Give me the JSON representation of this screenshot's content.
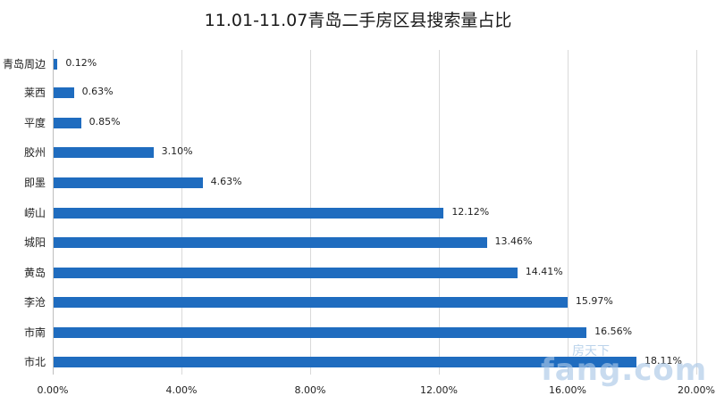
{
  "chart_data": {
    "type": "bar",
    "orientation": "horizontal",
    "title": "11.01-11.07青岛二手房区县搜索量占比",
    "xlabel": "",
    "ylabel": "",
    "categories": [
      "青岛周边",
      "莱西",
      "平度",
      "胶州",
      "即墨",
      "崂山",
      "城阳",
      "黄岛",
      "李沧",
      "市南",
      "市北"
    ],
    "values": [
      0.12,
      0.63,
      0.85,
      3.1,
      4.63,
      12.12,
      13.46,
      14.41,
      15.97,
      16.56,
      18.11
    ],
    "value_labels": [
      "0.12%",
      "0.63%",
      "0.85%",
      "3.10%",
      "4.63%",
      "12.12%",
      "13.46%",
      "14.41%",
      "15.97%",
      "16.56%",
      "18.11%"
    ],
    "xlim": [
      0,
      20
    ],
    "x_ticks": [
      "0.00%",
      "4.00%",
      "8.00%",
      "12.00%",
      "16.00%",
      "20.00%"
    ],
    "grid": "vertical",
    "legend": "none",
    "bar_color": "#1f6cbf"
  },
  "watermark": {
    "brand": "房天下",
    "domain": "fang.com"
  }
}
